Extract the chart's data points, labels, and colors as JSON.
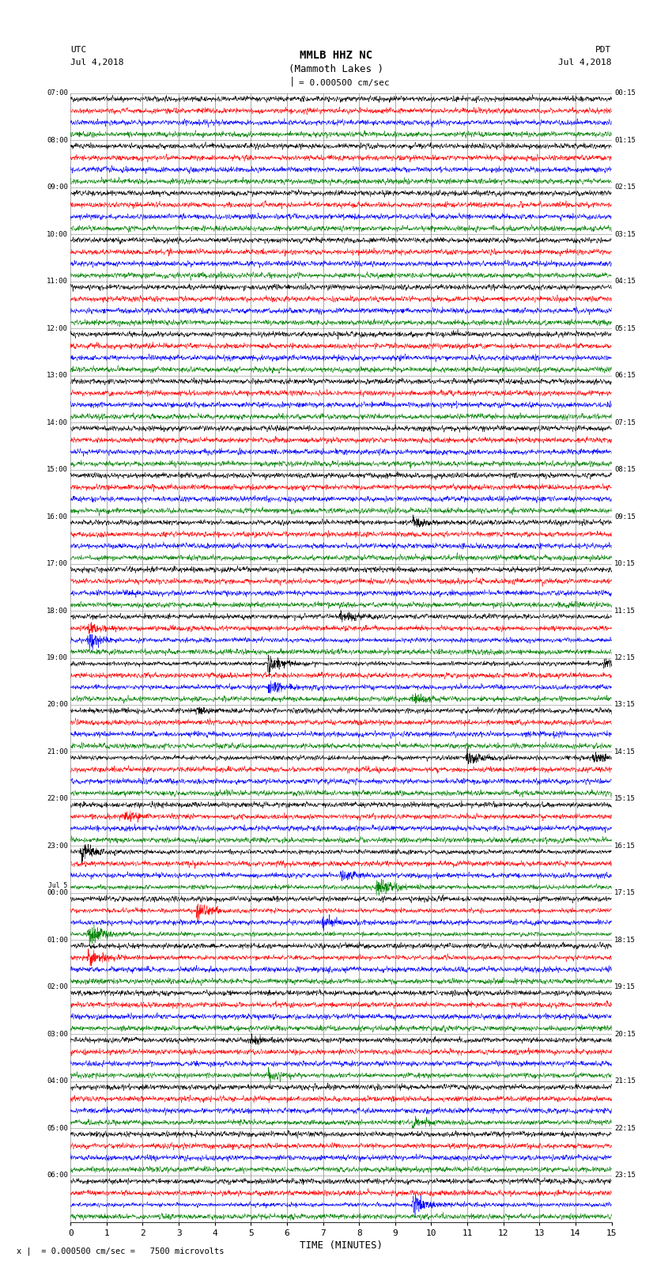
{
  "title_line1": "MMLB HHZ NC",
  "title_line2": "(Mammoth Lakes )",
  "title_line3": "I = 0.000500 cm/sec",
  "left_label": "UTC",
  "left_date": "Jul 4,2018",
  "right_label": "PDT",
  "right_date": "Jul 4,2018",
  "xlabel": "TIME (MINUTES)",
  "bottom_annotation": "= 0.000500 cm/sec =   7500 microvolts",
  "xlim": [
    0,
    15
  ],
  "utc_times": [
    "07:00",
    "08:00",
    "09:00",
    "10:00",
    "11:00",
    "12:00",
    "13:00",
    "14:00",
    "15:00",
    "16:00",
    "17:00",
    "18:00",
    "19:00",
    "20:00",
    "21:00",
    "22:00",
    "23:00",
    "Jul 5\n00:00",
    "01:00",
    "02:00",
    "03:00",
    "04:00",
    "05:00",
    "06:00"
  ],
  "pdt_times": [
    "00:15",
    "01:15",
    "02:15",
    "03:15",
    "04:15",
    "05:15",
    "06:15",
    "07:15",
    "08:15",
    "09:15",
    "10:15",
    "11:15",
    "12:15",
    "13:15",
    "14:15",
    "15:15",
    "16:15",
    "17:15",
    "18:15",
    "19:15",
    "20:15",
    "21:15",
    "22:15",
    "23:15"
  ],
  "n_rows": 24,
  "traces_per_row": 4,
  "trace_colors": [
    "black",
    "red",
    "blue",
    "green"
  ],
  "bg_color": "white",
  "grid_color": "#888888",
  "notable_events": [
    [
      9,
      0,
      9.5,
      1.8
    ],
    [
      10,
      2,
      1.5,
      1.2
    ],
    [
      10,
      3,
      13.5,
      1.2
    ],
    [
      11,
      0,
      7.5,
      2.2
    ],
    [
      11,
      1,
      0.5,
      2.0
    ],
    [
      11,
      2,
      0.5,
      3.5
    ],
    [
      12,
      0,
      5.5,
      5.0
    ],
    [
      12,
      0,
      14.8,
      2.5
    ],
    [
      12,
      2,
      5.5,
      3.0
    ],
    [
      12,
      3,
      9.5,
      2.0
    ],
    [
      13,
      0,
      3.5,
      2.0
    ],
    [
      14,
      0,
      11.0,
      2.5
    ],
    [
      14,
      0,
      14.5,
      2.0
    ],
    [
      15,
      1,
      1.5,
      2.5
    ],
    [
      16,
      0,
      0.3,
      3.5
    ],
    [
      16,
      2,
      7.5,
      2.0
    ],
    [
      16,
      3,
      8.5,
      3.5
    ],
    [
      17,
      1,
      3.5,
      3.0
    ],
    [
      17,
      2,
      7.0,
      2.0
    ],
    [
      17,
      3,
      0.5,
      4.0
    ],
    [
      18,
      1,
      0.5,
      3.0
    ],
    [
      20,
      0,
      5.0,
      2.0
    ],
    [
      20,
      3,
      5.5,
      2.0
    ],
    [
      21,
      3,
      9.5,
      2.5
    ],
    [
      23,
      2,
      9.5,
      4.0
    ]
  ]
}
